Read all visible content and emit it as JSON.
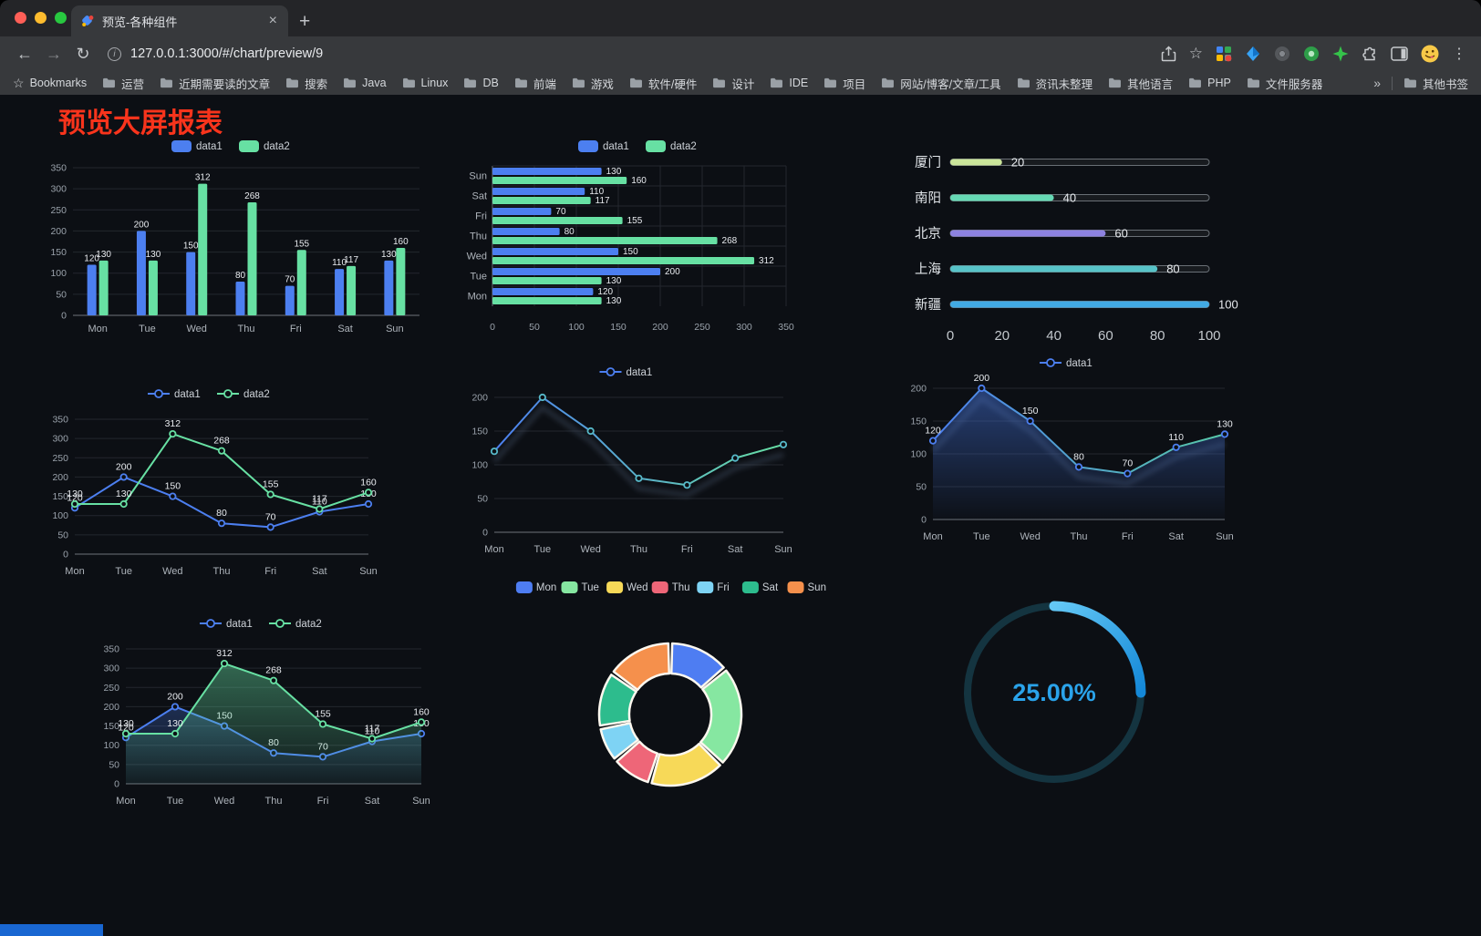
{
  "window": {
    "tab_title": "预览-各种组件",
    "url": "127.0.0.1:3000/#/chart/preview/9"
  },
  "icons": {
    "close": "×",
    "plus": "+",
    "back": "←",
    "forward": "→",
    "reload": "↻",
    "info": "i",
    "star": "☆",
    "menu": "⋮",
    "bookmark_star": "☆",
    "overflow": "»"
  },
  "bookmarks_bar": {
    "primary_label": "Bookmarks",
    "folders": [
      "运营",
      "近期需要读的文章",
      "搜索",
      "Java",
      "Linux",
      "DB",
      "前端",
      "游戏",
      "软件/硬件",
      "设计",
      "IDE",
      "项目",
      "网站/博客/文章/工具",
      "资讯未整理",
      "其他语言",
      "PHP",
      "文件服务器"
    ],
    "overflow": "»",
    "other_label": "其他书签"
  },
  "page": {
    "title": "预览大屏报表"
  },
  "chart_data": [
    {
      "id": "chart-bar",
      "type": "bar",
      "categories": [
        "Mon",
        "Tue",
        "Wed",
        "Thu",
        "Fri",
        "Sat",
        "Sun"
      ],
      "series": [
        {
          "name": "data1",
          "color": "#4c7ff0",
          "values": [
            120,
            200,
            150,
            80,
            70,
            110,
            130
          ],
          "labels": true
        },
        {
          "name": "data2",
          "color": "#67e0a3",
          "values": [
            130,
            130,
            312,
            268,
            155,
            117,
            160
          ],
          "labels": true
        }
      ],
      "ylim": [
        0,
        350
      ],
      "ytick": 50
    },
    {
      "id": "chart-hbar",
      "type": "hbar",
      "categories": [
        "Mon",
        "Tue",
        "Wed",
        "Thu",
        "Fri",
        "Sat",
        "Sun"
      ],
      "series": [
        {
          "name": "data1",
          "color": "#4c7ff0",
          "values": [
            120,
            200,
            150,
            80,
            70,
            110,
            130
          ],
          "labels": true
        },
        {
          "name": "data2",
          "color": "#67e0a3",
          "values": [
            130,
            130,
            312,
            268,
            155,
            117,
            160
          ],
          "labels": true
        }
      ],
      "xlim": [
        0,
        350
      ],
      "xtick": 50
    },
    {
      "id": "chart-progress",
      "type": "progress",
      "max": 100,
      "axis": [
        0,
        20,
        40,
        60,
        80,
        100
      ],
      "items": [
        {
          "label": "厦门",
          "value": 20,
          "color": "#cbe59a"
        },
        {
          "label": "南阳",
          "value": 40,
          "color": "#66d9b4"
        },
        {
          "label": "北京",
          "value": 60,
          "color": "#8d82e0"
        },
        {
          "label": "上海",
          "value": 80,
          "color": "#57c3c8"
        },
        {
          "label": "新疆",
          "value": 100,
          "color": "#41aae4"
        }
      ]
    },
    {
      "id": "chart-line-dual",
      "type": "line",
      "categories": [
        "Mon",
        "Tue",
        "Wed",
        "Thu",
        "Fri",
        "Sat",
        "Sun"
      ],
      "series": [
        {
          "name": "data1",
          "color": "#4c7ff0",
          "values": [
            120,
            200,
            150,
            80,
            70,
            110,
            130
          ],
          "labels": true
        },
        {
          "name": "data2",
          "color": "#67e0a3",
          "values": [
            130,
            130,
            312,
            268,
            155,
            117,
            160
          ],
          "labels": true
        }
      ],
      "ylim": [
        0,
        350
      ],
      "ytick": 50
    },
    {
      "id": "chart-line-gradient",
      "type": "line",
      "shadow": true,
      "categories": [
        "Mon",
        "Tue",
        "Wed",
        "Thu",
        "Fri",
        "Sat",
        "Sun"
      ],
      "series": [
        {
          "name": "data1",
          "gradient": [
            "#4c7ff0",
            "#67e0a3"
          ],
          "marker_color": "#57b9c9",
          "values": [
            120,
            200,
            150,
            80,
            70,
            110,
            130
          ],
          "labels": false
        }
      ],
      "ylim": [
        0,
        200
      ],
      "ytick": 50
    },
    {
      "id": "chart-line-area",
      "type": "line",
      "shadow": true,
      "categories": [
        "Mon",
        "Tue",
        "Wed",
        "Thu",
        "Fri",
        "Sat",
        "Sun"
      ],
      "series": [
        {
          "name": "data1",
          "gradient": [
            "#4c7ff0",
            "#58c9a8"
          ],
          "marker_color": "#4c7ff0",
          "values": [
            120,
            200,
            150,
            80,
            70,
            110,
            130
          ],
          "labels": true,
          "area": true,
          "area_from": "rgba(66,112,214,0.50)",
          "area_to": "rgba(66,112,214,0.02)"
        }
      ],
      "ylim": [
        0,
        200
      ],
      "ytick": 50
    },
    {
      "id": "chart-line-dual-area",
      "type": "line",
      "categories": [
        "Mon",
        "Tue",
        "Wed",
        "Thu",
        "Fri",
        "Sat",
        "Sun"
      ],
      "series": [
        {
          "name": "data1",
          "color": "#4c7ff0",
          "values": [
            120,
            200,
            150,
            80,
            70,
            110,
            130
          ],
          "labels": true,
          "area": true,
          "area_from": "rgba(76,127,240,0.28)",
          "area_to": "rgba(76,127,240,0.03)"
        },
        {
          "name": "data2",
          "color": "#67e0a3",
          "values": [
            130,
            130,
            312,
            268,
            155,
            117,
            160
          ],
          "labels": true,
          "area": true,
          "area_from": "rgba(103,224,163,0.42)",
          "area_to": "rgba(103,224,163,0.05)"
        }
      ],
      "ylim": [
        0,
        350
      ],
      "ytick": 50
    },
    {
      "id": "chart-donut",
      "type": "donut",
      "items": [
        {
          "label": "Mon",
          "value": 120,
          "color": "#4e7df2"
        },
        {
          "label": "Tue",
          "value": 200,
          "color": "#86e7a1"
        },
        {
          "label": "Wed",
          "value": 150,
          "color": "#f7d958"
        },
        {
          "label": "Thu",
          "value": 80,
          "color": "#ee6678"
        },
        {
          "label": "Fri",
          "value": 70,
          "color": "#7ed3f4"
        },
        {
          "label": "Sat",
          "value": 110,
          "color": "#2dbc8d"
        },
        {
          "label": "Sun",
          "value": 130,
          "color": "#f5904c"
        }
      ]
    },
    {
      "id": "chart-gauge",
      "type": "gauge",
      "value": 25,
      "label": "25.00%",
      "color": "#2aa3ea",
      "track": "#143440",
      "grad": [
        "#63c7f5",
        "#1488d8"
      ]
    }
  ]
}
